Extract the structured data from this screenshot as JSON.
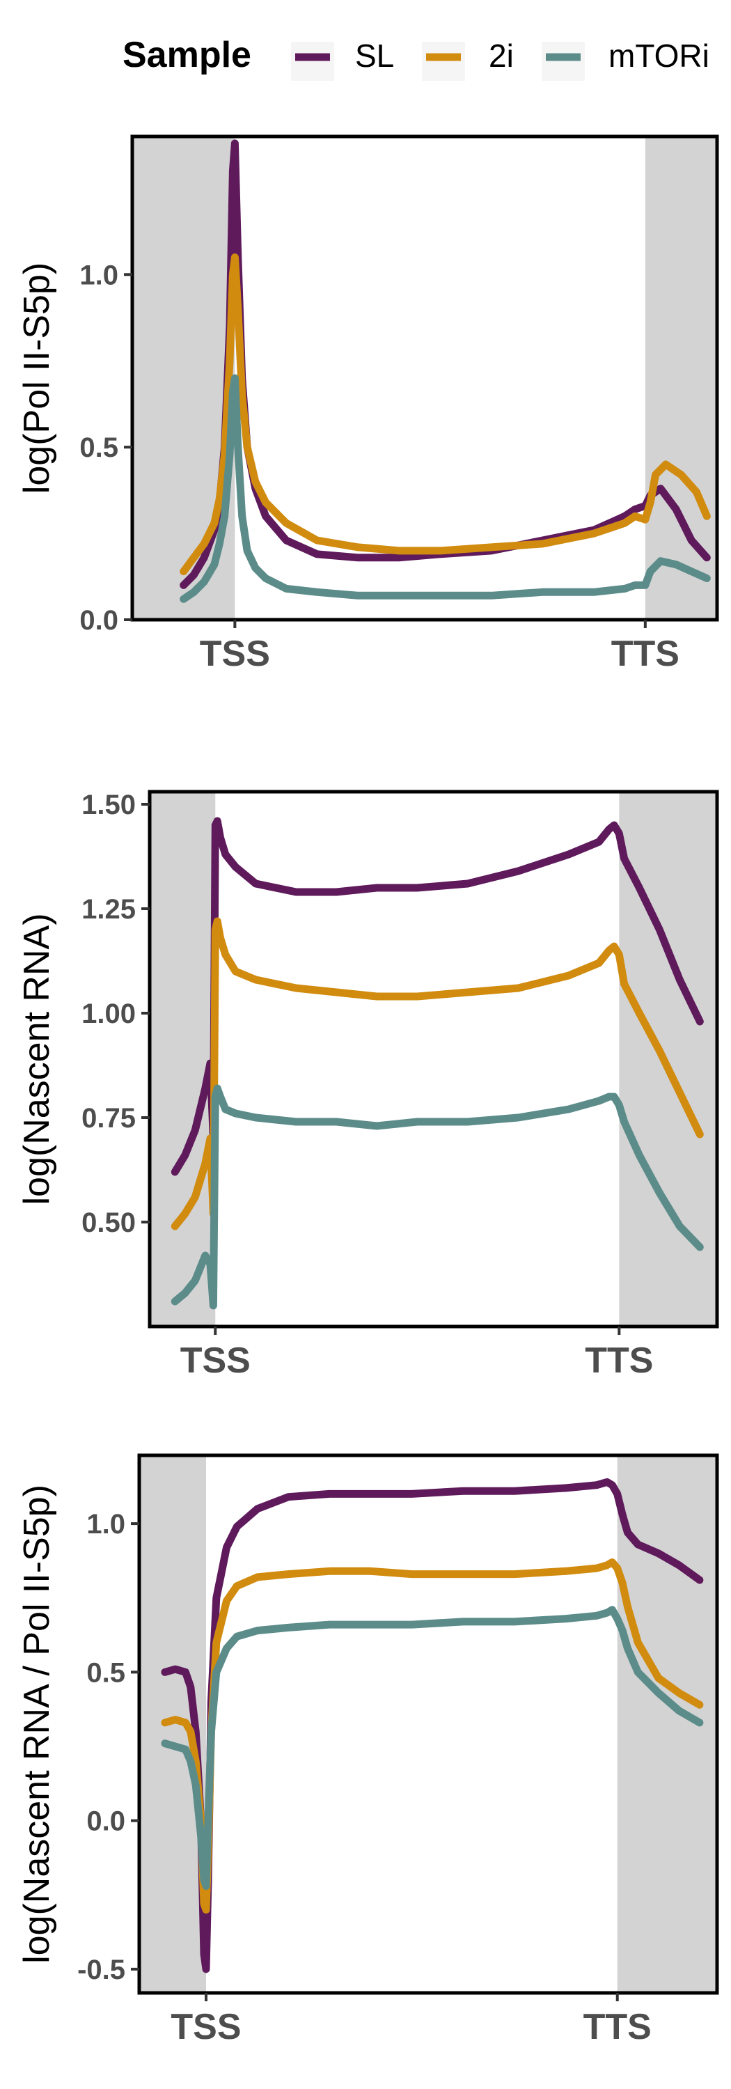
{
  "legend": {
    "title": "Sample",
    "entries": [
      {
        "label": "SL",
        "color": "#5f1a5c"
      },
      {
        "label": "2i",
        "color": "#d18b0f"
      },
      {
        "label": "mTORi",
        "color": "#5b8c8a"
      }
    ]
  },
  "chart_data": [
    {
      "type": "line",
      "title": "",
      "xlabel": "",
      "ylabel": "log(Pol II-S5p)",
      "x_categories": [
        "TSS",
        "TTS"
      ],
      "ylim": [
        0,
        1.4
      ],
      "yticks": [
        0.0,
        0.5,
        1.0
      ],
      "ytick_labels": [
        "0.0",
        "0.5",
        "1.0"
      ],
      "shaded_regions": [
        "upstream of TSS",
        "downstream of TTS"
      ],
      "grid": false,
      "legend_position": "top",
      "x_domain": [
        -1.0,
        4.7
      ],
      "tss_at": 0,
      "tts_at": 4,
      "series": [
        {
          "name": "SL",
          "color": "#5f1a5c",
          "x": [
            -0.5,
            -0.4,
            -0.3,
            -0.2,
            -0.15,
            -0.1,
            -0.05,
            -0.02,
            0,
            0.03,
            0.07,
            0.12,
            0.2,
            0.3,
            0.5,
            0.8,
            1.2,
            1.6,
            2,
            2.5,
            3,
            3.5,
            3.8,
            3.9,
            4.0,
            4.05,
            4.15,
            4.3,
            4.45,
            4.6
          ],
          "values": [
            0.1,
            0.13,
            0.18,
            0.26,
            0.34,
            0.5,
            0.85,
            1.3,
            1.38,
            1.05,
            0.7,
            0.5,
            0.38,
            0.3,
            0.23,
            0.19,
            0.18,
            0.18,
            0.19,
            0.2,
            0.23,
            0.26,
            0.3,
            0.32,
            0.33,
            0.36,
            0.38,
            0.32,
            0.23,
            0.18
          ]
        },
        {
          "name": "2i",
          "color": "#d18b0f",
          "x": [
            -0.5,
            -0.4,
            -0.3,
            -0.2,
            -0.15,
            -0.1,
            -0.05,
            -0.02,
            0,
            0.03,
            0.07,
            0.12,
            0.2,
            0.3,
            0.5,
            0.8,
            1.2,
            1.6,
            2,
            2.5,
            3,
            3.5,
            3.8,
            3.9,
            4.0,
            4.05,
            4.1,
            4.2,
            4.35,
            4.5,
            4.6
          ],
          "values": [
            0.14,
            0.18,
            0.22,
            0.28,
            0.35,
            0.48,
            0.75,
            1.0,
            1.05,
            0.9,
            0.65,
            0.5,
            0.4,
            0.34,
            0.28,
            0.23,
            0.21,
            0.2,
            0.2,
            0.21,
            0.22,
            0.25,
            0.28,
            0.3,
            0.29,
            0.34,
            0.42,
            0.45,
            0.42,
            0.37,
            0.3
          ]
        },
        {
          "name": "mTORi",
          "color": "#5b8c8a",
          "x": [
            -0.5,
            -0.4,
            -0.3,
            -0.2,
            -0.15,
            -0.1,
            -0.05,
            -0.02,
            0,
            0.03,
            0.07,
            0.12,
            0.2,
            0.3,
            0.5,
            0.8,
            1.2,
            1.6,
            2,
            2.5,
            3,
            3.5,
            3.8,
            3.9,
            4.0,
            4.05,
            4.15,
            4.3,
            4.45,
            4.6
          ],
          "values": [
            0.06,
            0.08,
            0.11,
            0.16,
            0.22,
            0.3,
            0.48,
            0.66,
            0.7,
            0.5,
            0.3,
            0.2,
            0.15,
            0.12,
            0.09,
            0.08,
            0.07,
            0.07,
            0.07,
            0.07,
            0.08,
            0.08,
            0.09,
            0.1,
            0.1,
            0.14,
            0.17,
            0.16,
            0.14,
            0.12
          ]
        }
      ]
    },
    {
      "type": "line",
      "title": "",
      "xlabel": "",
      "ylabel": "log(Nascent RNA)",
      "x_categories": [
        "TSS",
        "TTS"
      ],
      "ylim": [
        0.25,
        1.53
      ],
      "yticks": [
        0.5,
        0.75,
        1.0,
        1.25,
        1.5
      ],
      "ytick_labels": [
        "0.50",
        "0.75",
        "1.00",
        "1.25",
        "1.50"
      ],
      "shaded_regions": [
        "upstream of TSS",
        "downstream of TTS"
      ],
      "grid": false,
      "legend_position": "top",
      "x_domain": [
        -0.65,
        4.97
      ],
      "tss_at": 0,
      "tts_at": 4,
      "series": [
        {
          "name": "SL",
          "color": "#5f1a5c",
          "x": [
            -0.4,
            -0.3,
            -0.2,
            -0.1,
            -0.05,
            -0.02,
            0,
            0.02,
            0.05,
            0.1,
            0.2,
            0.4,
            0.8,
            1.2,
            1.6,
            2,
            2.5,
            3,
            3.5,
            3.8,
            3.9,
            3.95,
            4.0,
            4.05,
            4.2,
            4.4,
            4.6,
            4.8
          ],
          "values": [
            0.62,
            0.66,
            0.72,
            0.82,
            0.88,
            0.7,
            1.45,
            1.46,
            1.42,
            1.38,
            1.35,
            1.31,
            1.29,
            1.29,
            1.3,
            1.3,
            1.31,
            1.34,
            1.38,
            1.41,
            1.44,
            1.45,
            1.43,
            1.37,
            1.3,
            1.2,
            1.08,
            0.98
          ]
        },
        {
          "name": "2i",
          "color": "#d18b0f",
          "x": [
            -0.4,
            -0.3,
            -0.2,
            -0.1,
            -0.05,
            -0.02,
            0,
            0.02,
            0.05,
            0.1,
            0.2,
            0.4,
            0.8,
            1.2,
            1.6,
            2,
            2.5,
            3,
            3.5,
            3.8,
            3.9,
            3.95,
            4.0,
            4.05,
            4.2,
            4.4,
            4.6,
            4.8
          ],
          "values": [
            0.49,
            0.52,
            0.56,
            0.64,
            0.7,
            0.52,
            1.2,
            1.22,
            1.18,
            1.14,
            1.1,
            1.08,
            1.06,
            1.05,
            1.04,
            1.04,
            1.05,
            1.06,
            1.09,
            1.12,
            1.15,
            1.16,
            1.14,
            1.07,
            1.0,
            0.91,
            0.81,
            0.71
          ]
        },
        {
          "name": "mTORi",
          "color": "#5b8c8a",
          "x": [
            -0.4,
            -0.3,
            -0.2,
            -0.1,
            -0.05,
            -0.02,
            0,
            0.02,
            0.05,
            0.1,
            0.2,
            0.4,
            0.8,
            1.2,
            1.6,
            2,
            2.5,
            3,
            3.5,
            3.8,
            3.9,
            3.95,
            4.0,
            4.05,
            4.2,
            4.4,
            4.6,
            4.8
          ],
          "values": [
            0.31,
            0.33,
            0.36,
            0.42,
            0.4,
            0.3,
            0.8,
            0.82,
            0.8,
            0.77,
            0.76,
            0.75,
            0.74,
            0.74,
            0.73,
            0.74,
            0.74,
            0.75,
            0.77,
            0.79,
            0.8,
            0.8,
            0.78,
            0.74,
            0.66,
            0.57,
            0.49,
            0.44
          ]
        }
      ]
    },
    {
      "type": "line",
      "title": "",
      "xlabel": "",
      "ylabel": "log(Nascent RNA / Pol II-S5p)",
      "x_categories": [
        "TSS",
        "TTS"
      ],
      "ylim": [
        -0.58,
        1.23
      ],
      "yticks": [
        -0.5,
        0.0,
        0.5,
        1.0
      ],
      "ytick_labels": [
        "-0.5",
        "0.0",
        "0.5",
        "1.0"
      ],
      "shaded_regions": [
        "upstream of TSS",
        "downstream of TTS"
      ],
      "grid": false,
      "legend_position": "top",
      "x_domain": [
        -0.65,
        4.97
      ],
      "tss_at": 0,
      "tts_at": 4,
      "series": [
        {
          "name": "SL",
          "color": "#5f1a5c",
          "x": [
            -0.4,
            -0.3,
            -0.2,
            -0.15,
            -0.1,
            -0.05,
            -0.02,
            0,
            0.02,
            0.05,
            0.1,
            0.2,
            0.3,
            0.5,
            0.8,
            1.2,
            1.6,
            2,
            2.5,
            3,
            3.5,
            3.8,
            3.9,
            3.95,
            4.0,
            4.05,
            4.1,
            4.2,
            4.4,
            4.6,
            4.8
          ],
          "values": [
            0.5,
            0.51,
            0.5,
            0.45,
            0.3,
            0.0,
            -0.45,
            -0.5,
            -0.2,
            0.4,
            0.75,
            0.92,
            0.99,
            1.05,
            1.09,
            1.1,
            1.1,
            1.1,
            1.11,
            1.11,
            1.12,
            1.13,
            1.14,
            1.13,
            1.1,
            1.03,
            0.97,
            0.93,
            0.9,
            0.86,
            0.81
          ]
        },
        {
          "name": "2i",
          "color": "#d18b0f",
          "x": [
            -0.4,
            -0.3,
            -0.2,
            -0.15,
            -0.1,
            -0.05,
            -0.02,
            0,
            0.02,
            0.05,
            0.1,
            0.2,
            0.3,
            0.5,
            0.8,
            1.2,
            1.6,
            2,
            2.5,
            3,
            3.5,
            3.8,
            3.9,
            3.95,
            4.0,
            4.05,
            4.1,
            4.2,
            4.4,
            4.6,
            4.8
          ],
          "values": [
            0.33,
            0.34,
            0.33,
            0.3,
            0.2,
            0.0,
            -0.28,
            -0.3,
            -0.1,
            0.3,
            0.6,
            0.74,
            0.79,
            0.82,
            0.83,
            0.84,
            0.84,
            0.83,
            0.83,
            0.83,
            0.84,
            0.85,
            0.86,
            0.87,
            0.85,
            0.8,
            0.72,
            0.6,
            0.48,
            0.43,
            0.39
          ]
        },
        {
          "name": "mTORi",
          "color": "#5b8c8a",
          "x": [
            -0.4,
            -0.3,
            -0.2,
            -0.15,
            -0.1,
            -0.05,
            -0.02,
            0,
            0.02,
            0.05,
            0.1,
            0.2,
            0.3,
            0.5,
            0.8,
            1.2,
            1.6,
            2,
            2.5,
            3,
            3.5,
            3.8,
            3.9,
            3.95,
            4.0,
            4.05,
            4.1,
            4.2,
            4.4,
            4.6,
            4.8
          ],
          "values": [
            0.26,
            0.25,
            0.24,
            0.2,
            0.12,
            -0.05,
            -0.2,
            -0.22,
            0.0,
            0.3,
            0.5,
            0.58,
            0.62,
            0.64,
            0.65,
            0.66,
            0.66,
            0.66,
            0.67,
            0.67,
            0.68,
            0.69,
            0.7,
            0.71,
            0.68,
            0.64,
            0.58,
            0.5,
            0.43,
            0.37,
            0.33
          ]
        }
      ]
    }
  ]
}
